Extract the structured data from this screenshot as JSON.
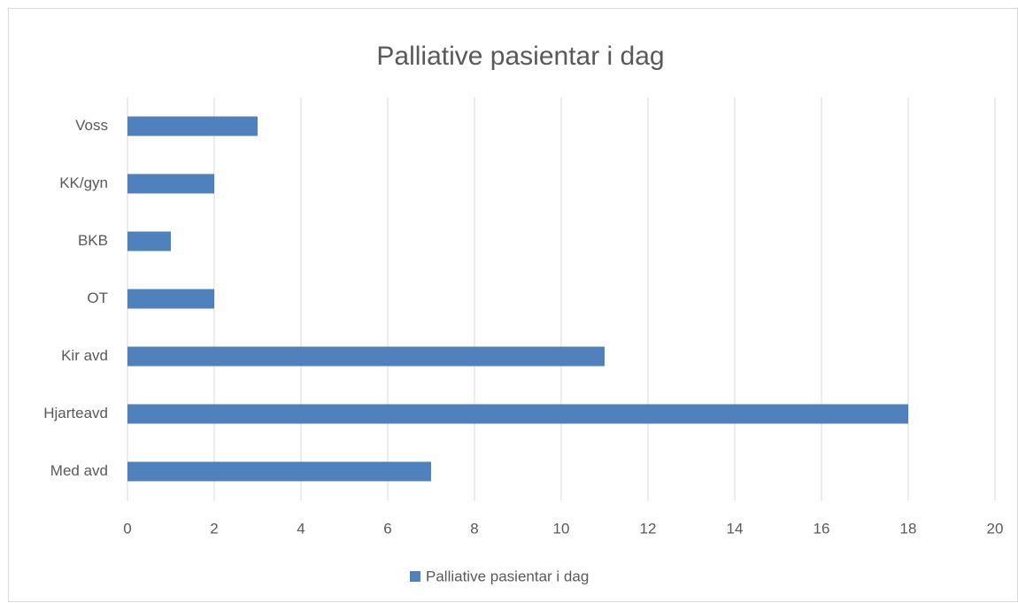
{
  "chart_data": {
    "type": "bar",
    "orientation": "horizontal",
    "title": "Palliative pasientar i dag",
    "categories": [
      "Med avd",
      "Hjarteavd",
      "Kir avd",
      "OT",
      "BKB",
      "KK/gyn",
      "Voss"
    ],
    "series": [
      {
        "name": "Palliative pasientar i dag",
        "color": "#4f81bd",
        "values": [
          7,
          18,
          11,
          2,
          1,
          2,
          3
        ]
      }
    ],
    "xlim": [
      0,
      20
    ],
    "xticks": [
      0,
      2,
      4,
      6,
      8,
      10,
      12,
      14,
      16,
      18,
      20
    ],
    "grid": true,
    "legend": "bottom"
  }
}
